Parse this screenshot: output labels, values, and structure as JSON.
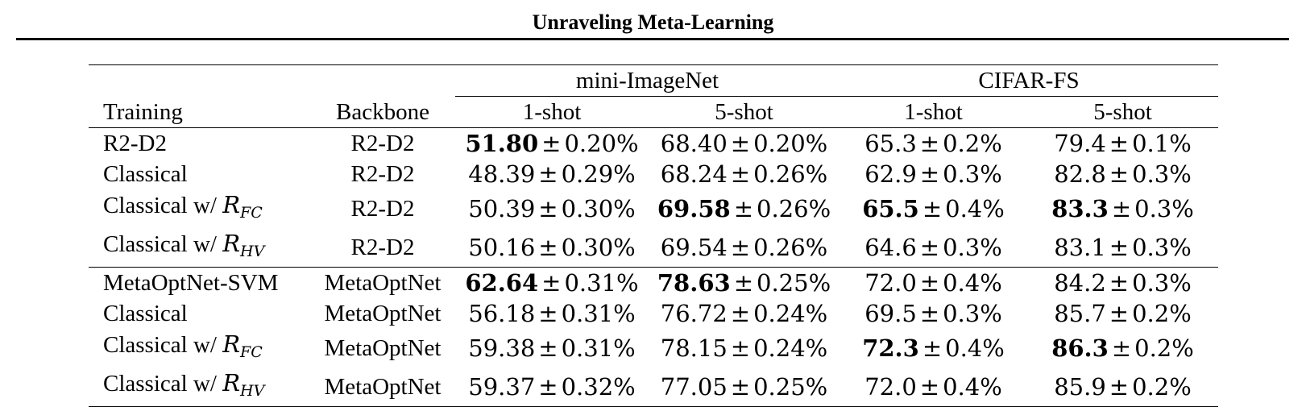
{
  "running_head": "Unraveling Meta-Learning",
  "table": {
    "datasets": [
      "mini-ImageNet",
      "CIFAR-FS"
    ],
    "col_headers": {
      "training": "Training",
      "backbone": "Backbone",
      "shots": [
        "1-shot",
        "5-shot",
        "1-shot",
        "5-shot"
      ]
    },
    "rows": [
      {
        "training": "R2-D2",
        "training_sub": "",
        "backbone": "R2-D2",
        "cells": [
          {
            "mean": "51.80",
            "err": "0.20%",
            "bold": true
          },
          {
            "mean": "68.40",
            "err": "0.20%",
            "bold": false
          },
          {
            "mean": "65.3",
            "err": "0.2%",
            "bold": false
          },
          {
            "mean": "79.4",
            "err": "0.1%",
            "bold": false
          }
        ]
      },
      {
        "training": "Classical",
        "training_sub": "",
        "backbone": "R2-D2",
        "cells": [
          {
            "mean": "48.39",
            "err": "0.29%",
            "bold": false
          },
          {
            "mean": "68.24",
            "err": "0.26%",
            "bold": false
          },
          {
            "mean": "62.9",
            "err": "0.3%",
            "bold": false
          },
          {
            "mean": "82.8",
            "err": "0.3%",
            "bold": false
          }
        ]
      },
      {
        "training": "Classical w/ ",
        "training_sym": "R",
        "training_sub": "FC",
        "backbone": "R2-D2",
        "cells": [
          {
            "mean": "50.39",
            "err": "0.30%",
            "bold": false
          },
          {
            "mean": "69.58",
            "err": "0.26%",
            "bold": true
          },
          {
            "mean": "65.5",
            "err": "0.4%",
            "bold": true
          },
          {
            "mean": "83.3",
            "err": "0.3%",
            "bold": true
          }
        ]
      },
      {
        "training": "Classical w/ ",
        "training_sym": "R",
        "training_sub": "HV",
        "backbone": "R2-D2",
        "cells": [
          {
            "mean": "50.16",
            "err": "0.30%",
            "bold": false
          },
          {
            "mean": "69.54",
            "err": "0.26%",
            "bold": false
          },
          {
            "mean": "64.6",
            "err": "0.3%",
            "bold": false
          },
          {
            "mean": "83.1",
            "err": "0.3%",
            "bold": false
          }
        ]
      },
      {
        "training": "MetaOptNet-SVM",
        "training_sub": "",
        "backbone": "MetaOptNet",
        "cells": [
          {
            "mean": "62.64",
            "err": "0.31%",
            "bold": true
          },
          {
            "mean": "78.63",
            "err": "0.25%",
            "bold": true
          },
          {
            "mean": "72.0",
            "err": "0.4%",
            "bold": false
          },
          {
            "mean": "84.2",
            "err": "0.3%",
            "bold": false
          }
        ]
      },
      {
        "training": "Classical",
        "training_sub": "",
        "backbone": "MetaOptNet",
        "cells": [
          {
            "mean": "56.18",
            "err": "0.31%",
            "bold": false
          },
          {
            "mean": "76.72",
            "err": "0.24%",
            "bold": false
          },
          {
            "mean": "69.5",
            "err": "0.3%",
            "bold": false
          },
          {
            "mean": "85.7",
            "err": "0.2%",
            "bold": false
          }
        ]
      },
      {
        "training": "Classical w/ ",
        "training_sym": "R",
        "training_sub": "FC",
        "backbone": "MetaOptNet",
        "cells": [
          {
            "mean": "59.38",
            "err": "0.31%",
            "bold": false
          },
          {
            "mean": "78.15",
            "err": "0.24%",
            "bold": false
          },
          {
            "mean": "72.3",
            "err": "0.4%",
            "bold": true
          },
          {
            "mean": "86.3",
            "err": "0.2%",
            "bold": true
          }
        ]
      },
      {
        "training": "Classical w/ ",
        "training_sym": "R",
        "training_sub": "HV",
        "backbone": "MetaOptNet",
        "cells": [
          {
            "mean": "59.37",
            "err": "0.32%",
            "bold": false
          },
          {
            "mean": "77.05",
            "err": "0.25%",
            "bold": false
          },
          {
            "mean": "72.0",
            "err": "0.4%",
            "bold": false
          },
          {
            "mean": "85.9",
            "err": "0.2%",
            "bold": false
          }
        ]
      }
    ]
  }
}
